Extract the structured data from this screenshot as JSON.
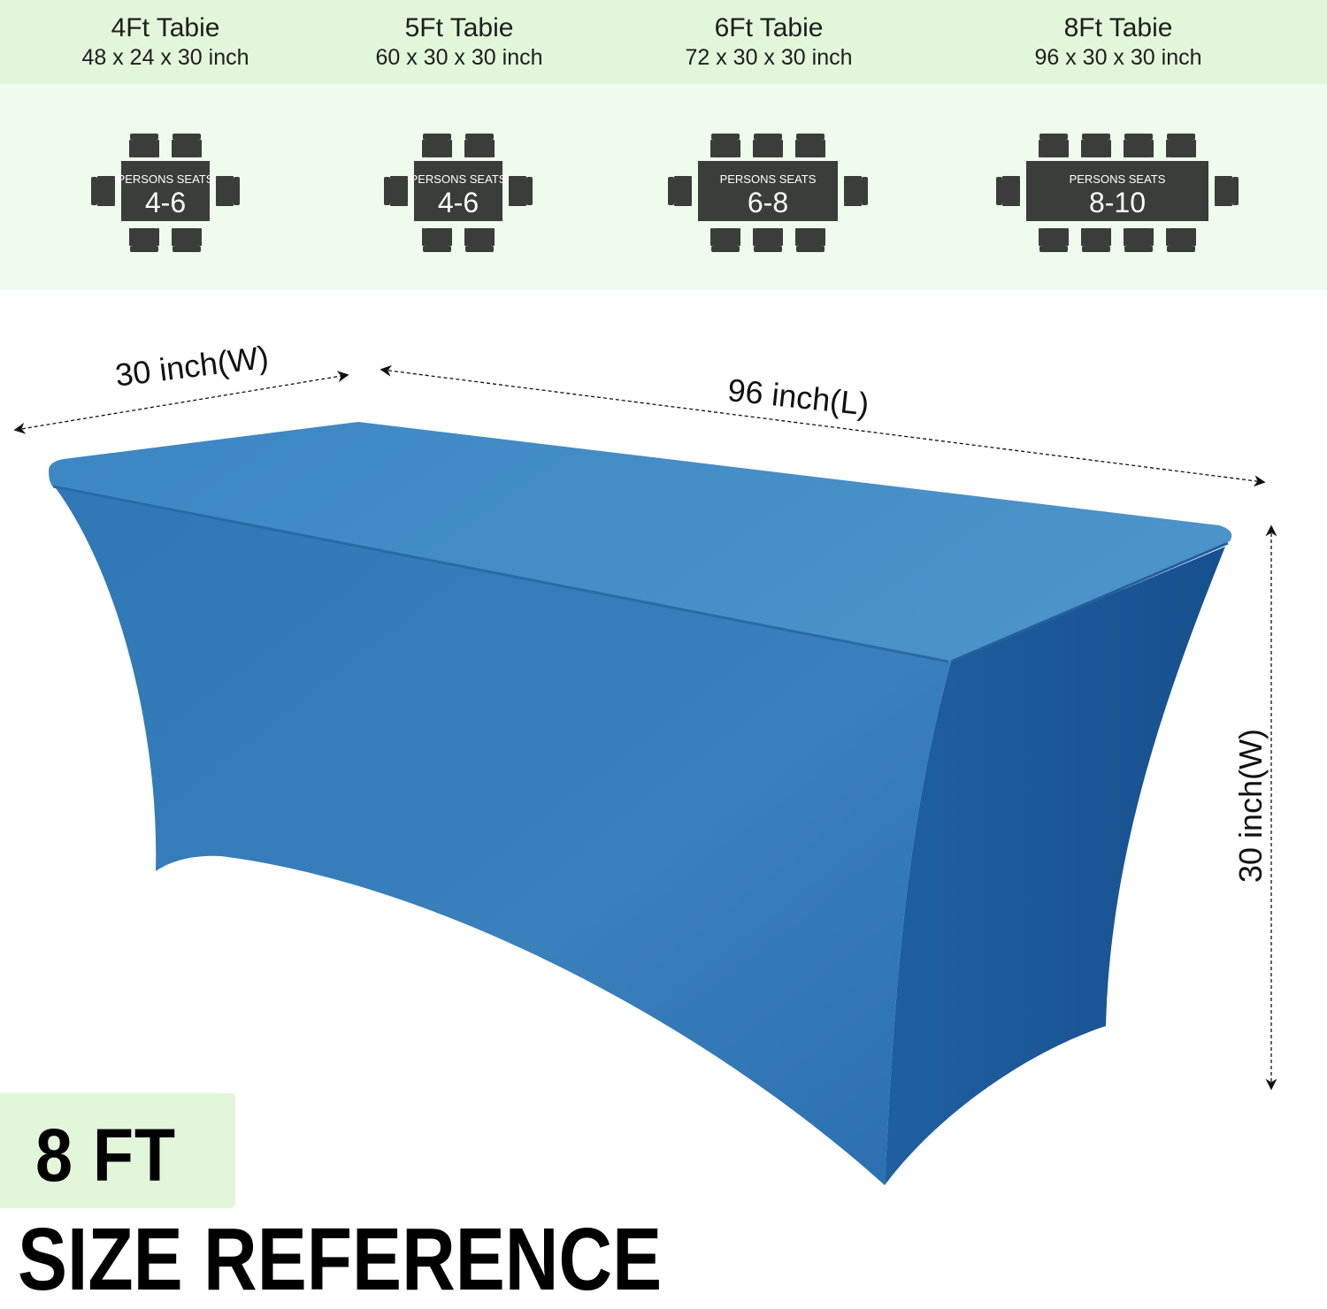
{
  "tables": [
    {
      "title": "4Ft  Tabie",
      "dims": "48 x 24 x 30 inch",
      "seats_label": "PERSONS SEATS",
      "seats": "4-6",
      "chairs_per_side": 2
    },
    {
      "title": "5Ft  Tabie",
      "dims": "60 x 30 x 30 inch",
      "seats_label": "PERSONS SEATS",
      "seats": "4-6",
      "chairs_per_side": 2
    },
    {
      "title": "6Ft  Tabie",
      "dims": "72 x 30 x 30 inch",
      "seats_label": "PERSONS SEATS",
      "seats": "6-8",
      "chairs_per_side": 3
    },
    {
      "title": "8Ft  Tabie",
      "dims": "96 x 30 x 30 inch",
      "seats_label": "PERSONS SEATS",
      "seats": "8-10",
      "chairs_per_side": 4
    }
  ],
  "dimensions": {
    "width_top": "30 inch(W)",
    "length": "96 inch(L)",
    "height": "30 inch(W)"
  },
  "badge": "8 FT",
  "heading": "SIZE REFERENCE",
  "colors": {
    "header_band": "#e2f7da",
    "seat_band": "#effbec",
    "seat_icon": "#3a3d3a",
    "cloth": "#2f78b8"
  }
}
